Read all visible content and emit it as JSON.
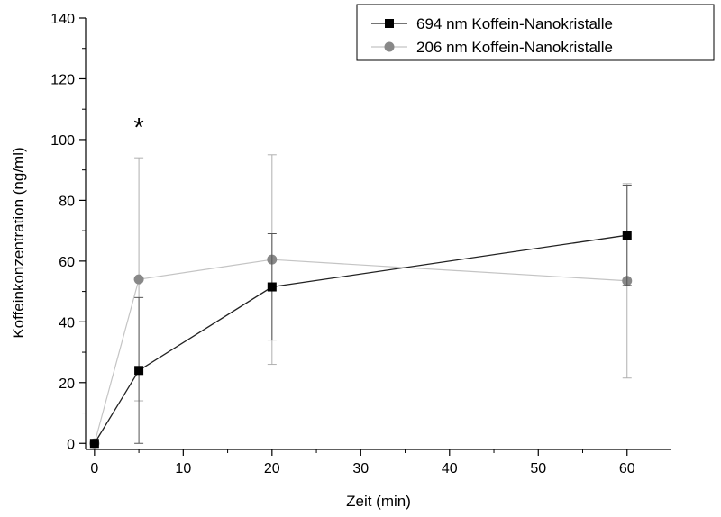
{
  "chart_data": {
    "type": "line",
    "title": "",
    "xlabel": "Zeit (min)",
    "ylabel": "Koffeinkonzentration (ng/ml)",
    "xlim": [
      -1,
      65
    ],
    "ylim": [
      -2,
      140
    ],
    "xticks": [
      0,
      10,
      20,
      30,
      40,
      50,
      60
    ],
    "yticks": [
      0,
      20,
      40,
      60,
      80,
      100,
      120,
      140
    ],
    "grid": false,
    "legend_position": "top-right",
    "series": [
      {
        "name": "694 nm Koffein-Nanokristalle",
        "color": "#000000",
        "marker": "square",
        "x": [
          0,
          5,
          20,
          60
        ],
        "y": [
          0,
          24,
          51.5,
          68.5
        ],
        "err": [
          0,
          24,
          17.5,
          16.5
        ]
      },
      {
        "name": "206 nm Koffein-Nanokristalle",
        "color": "#888888",
        "marker": "circle",
        "x": [
          0,
          5,
          20,
          60
        ],
        "y": [
          0,
          54,
          60.5,
          53.5
        ],
        "err": [
          0,
          40,
          34.5,
          32
        ]
      }
    ],
    "annotations": [
      {
        "text": "*",
        "x": 5,
        "y": 107
      }
    ]
  }
}
